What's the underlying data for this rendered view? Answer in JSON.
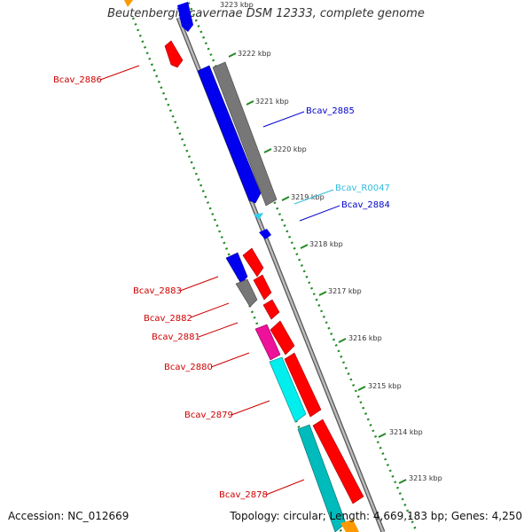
{
  "title": "Beutenbergia cavernae DSM 12333, complete genome",
  "footer": {
    "accession": "Accession: NC_012669",
    "summary": "Topology: circular; Length: 4,669,183 bp; Genes: 4,250"
  },
  "ticks": [
    {
      "label": "3223 kbp",
      "kbp": 3223
    },
    {
      "label": "3222 kbp",
      "kbp": 3222
    },
    {
      "label": "3221 kbp",
      "kbp": 3221
    },
    {
      "label": "3220 kbp",
      "kbp": 3220
    },
    {
      "label": "3219 kbp",
      "kbp": 3219
    },
    {
      "label": "3218 kbp",
      "kbp": 3218
    },
    {
      "label": "3217 kbp",
      "kbp": 3217
    },
    {
      "label": "3216 kbp",
      "kbp": 3216
    },
    {
      "label": "3215 kbp",
      "kbp": 3215
    },
    {
      "label": "3214 kbp",
      "kbp": 3214
    },
    {
      "label": "3213 kbp",
      "kbp": 3213
    }
  ],
  "gene_labels": [
    {
      "name": "Bcav_2886",
      "color": "#cc0000"
    },
    {
      "name": "Bcav_2885",
      "color": "#0000cc"
    },
    {
      "name": "Bcav_R0047",
      "color": "#33bbdd"
    },
    {
      "name": "Bcav_2884",
      "color": "#0000cc"
    },
    {
      "name": "Bcav_2883",
      "color": "#cc0000"
    },
    {
      "name": "Bcav_2882",
      "color": "#cc0000"
    },
    {
      "name": "Bcav_2881",
      "color": "#cc0000"
    },
    {
      "name": "Bcav_2880",
      "color": "#cc0000"
    },
    {
      "name": "Bcav_2879",
      "color": "#cc0000"
    },
    {
      "name": "Bcav_2878",
      "color": "#cc0000"
    }
  ],
  "colors": {
    "forward_cds": "#ff0000",
    "cds_blue": "#0000ee",
    "cds_gray": "#777777",
    "cds_magenta": "#ee1199",
    "cds_cyan": "#00eeee",
    "cds_teal": "#00bbbb",
    "rna": "#33ccee",
    "backbone": "#888888",
    "ruler": "#228822"
  }
}
